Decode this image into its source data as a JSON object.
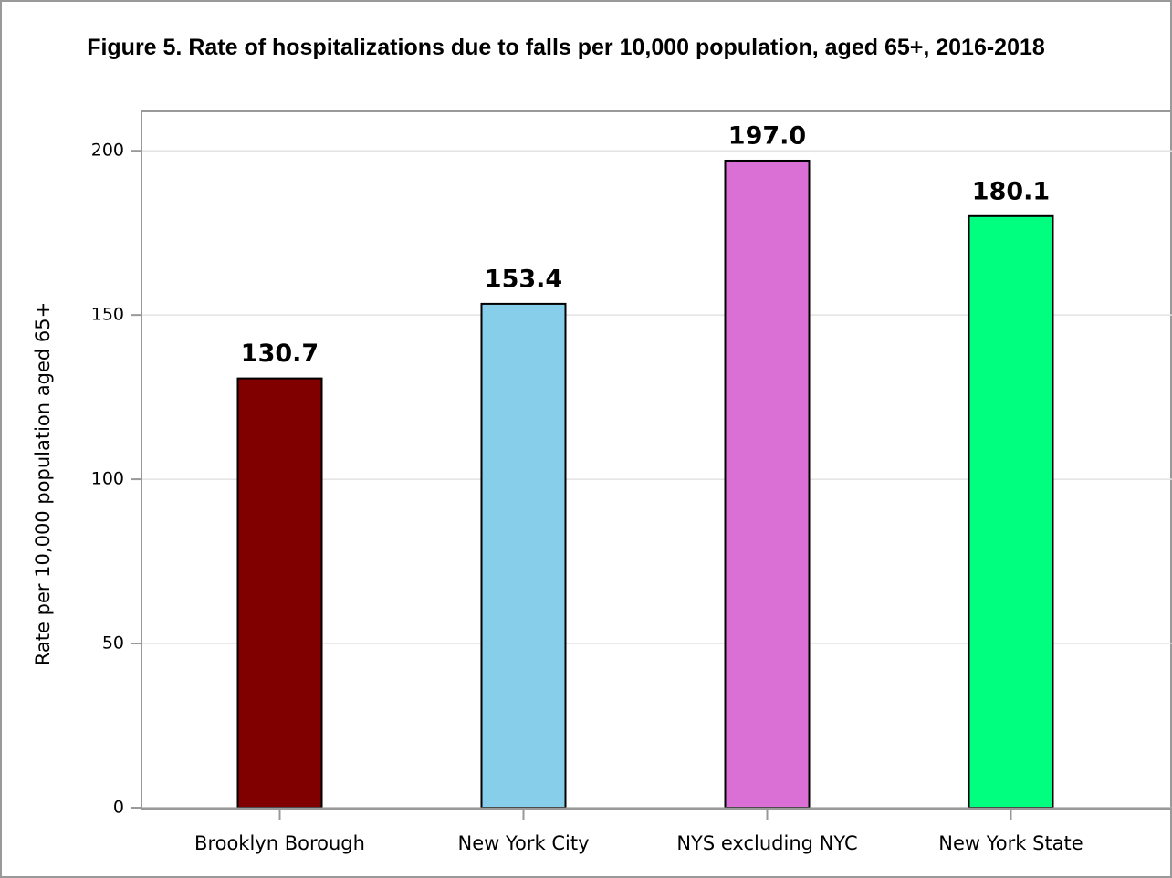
{
  "chart_data": {
    "type": "bar",
    "title": "Figure 5. Rate of hospitalizations due to falls per 10,000 population, aged 65+, 2016-2018",
    "y_label": "Rate per 10,000 population aged 65+",
    "categories": [
      "Brooklyn Borough",
      "New York City",
      "NYS excluding NYC",
      "New York State"
    ],
    "values": [
      130.7,
      153.4,
      197.0,
      180.1
    ],
    "value_labels": [
      "130.7",
      "153.4",
      "197.0",
      "180.1"
    ],
    "colors": [
      "#800000",
      "#87ceeb",
      "#da70d6",
      "#00ff7f"
    ],
    "ylim": [
      0,
      212
    ],
    "yticks": [
      0,
      50,
      100,
      150,
      200
    ],
    "grid": true
  }
}
